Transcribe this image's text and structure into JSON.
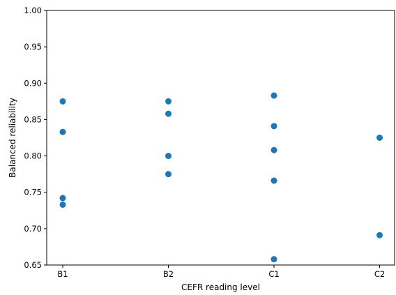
{
  "chart_data": {
    "type": "scatter",
    "title": "",
    "xlabel": "CEFR reading level",
    "ylabel": "Balanced reliability",
    "categories": [
      "B1",
      "B2",
      "C1",
      "C2"
    ],
    "ylim": [
      0.65,
      1.0
    ],
    "yticks": [
      "0.65",
      "0.70",
      "0.75",
      "0.80",
      "0.85",
      "0.90",
      "0.95",
      "1.00"
    ],
    "grid": false,
    "legend": "none",
    "marker_color": "#1f77b4",
    "series": [
      {
        "points": [
          {
            "x": "B1",
            "y": 0.875
          },
          {
            "x": "B1",
            "y": 0.833
          },
          {
            "x": "B1",
            "y": 0.742
          },
          {
            "x": "B1",
            "y": 0.733
          },
          {
            "x": "B2",
            "y": 0.875
          },
          {
            "x": "B2",
            "y": 0.858
          },
          {
            "x": "B2",
            "y": 0.8
          },
          {
            "x": "B2",
            "y": 0.775
          },
          {
            "x": "C1",
            "y": 0.883
          },
          {
            "x": "C1",
            "y": 0.841
          },
          {
            "x": "C1",
            "y": 0.808
          },
          {
            "x": "C1",
            "y": 0.766
          },
          {
            "x": "C1",
            "y": 0.658
          },
          {
            "x": "C2",
            "y": 0.825
          },
          {
            "x": "C2",
            "y": 0.691
          }
        ]
      }
    ]
  }
}
